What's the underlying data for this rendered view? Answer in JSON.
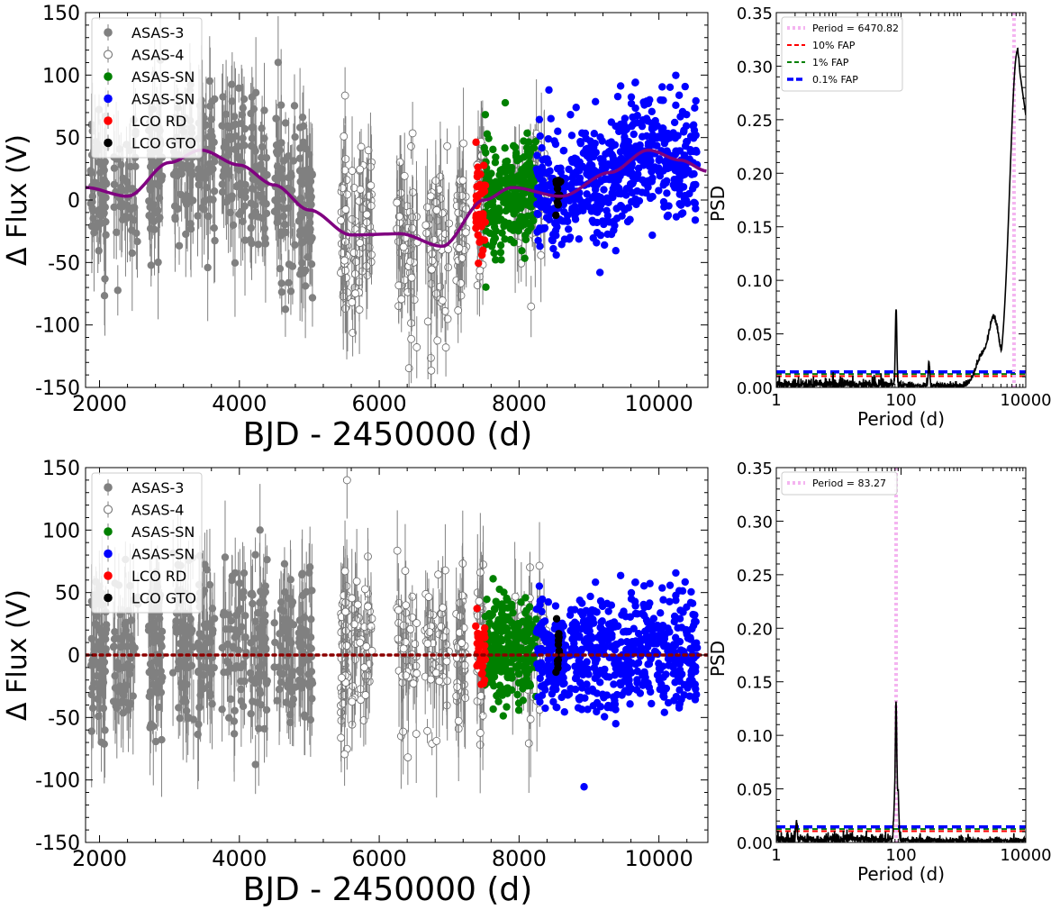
{
  "chart_data": [
    {
      "type": "scatter",
      "panel": "top-left",
      "xlabel": "BJD - 2450000 (d)",
      "ylabel": "Δ Flux (V)",
      "xlim": [
        1800,
        10700
      ],
      "ylim": [
        -150,
        150
      ],
      "xticks": [
        2000,
        4000,
        6000,
        8000,
        10000
      ],
      "yticks": [
        -150,
        -100,
        -50,
        0,
        50,
        100,
        150
      ],
      "legend_position": "top-left",
      "series": [
        {
          "name": "ASAS-3",
          "color": "#808080",
          "marker": "filled-circle",
          "x_range": [
            1870,
            5050
          ],
          "y_center": 15,
          "y_spread": 45
        },
        {
          "name": "ASAS-4",
          "color": "#ffffff",
          "marker": "open-circle",
          "x_range": [
            5400,
            8400
          ],
          "y_center": -20,
          "y_spread": 45
        },
        {
          "name": "ASAS-SN",
          "color": "#008000",
          "marker": "filled-circle",
          "x_range": [
            7500,
            8250
          ],
          "y_center": 10,
          "y_spread": 30
        },
        {
          "name": "ASAS-SN",
          "color": "#0000ff",
          "marker": "filled-circle",
          "x_range": [
            8250,
            10550
          ],
          "y_center": 20,
          "y_spread": 35
        },
        {
          "name": "LCO RD",
          "color": "#ff0000",
          "marker": "filled-circle",
          "x_range": [
            7380,
            7520
          ],
          "y_center": -15,
          "y_spread": 25
        },
        {
          "name": "LCO GTO",
          "color": "#000000",
          "marker": "filled-circle",
          "x_range": [
            8520,
            8600
          ],
          "y_center": 5,
          "y_spread": 15
        }
      ],
      "model": {
        "color": "#800080",
        "x": [
          1800,
          2400,
          3000,
          3450,
          4000,
          4500,
          5000,
          5600,
          6300,
          6900,
          7500,
          7900,
          8600,
          9300,
          9850,
          10300,
          10700
        ],
        "y": [
          10,
          3,
          30,
          40,
          28,
          12,
          -8,
          -28,
          -27,
          -37,
          0,
          10,
          3,
          22,
          40,
          32,
          23
        ]
      }
    },
    {
      "type": "line",
      "panel": "top-right",
      "xlabel": "Period (d)",
      "ylabel": "PSD",
      "xscale": "log",
      "xlim": [
        1,
        10000
      ],
      "ylim": [
        0,
        0.35
      ],
      "xticks": [
        1,
        100,
        10000
      ],
      "yticks": [
        0.0,
        0.05,
        0.1,
        0.15,
        0.2,
        0.25,
        0.3,
        0.35
      ],
      "peak_period": 6470.82,
      "peaks": [
        {
          "period": 83.27,
          "psd": 0.072
        },
        {
          "period": 280,
          "psd": 0.022
        },
        {
          "period": 1900,
          "psd": 0.025
        },
        {
          "period": 3100,
          "psd": 0.062
        },
        {
          "period": 7300,
          "psd": 0.313
        }
      ],
      "fap_levels": [
        {
          "name": "10% FAP",
          "value": 0.0105,
          "color": "#ff0000"
        },
        {
          "name": "1% FAP",
          "value": 0.0125,
          "color": "#008000"
        },
        {
          "name": "0.1% FAP",
          "value": 0.0145,
          "color": "#0000ff"
        }
      ],
      "legend": [
        {
          "label": "Period = 6470.82",
          "color": "#f4b4f0",
          "style": "dotted"
        },
        {
          "label": "10% FAP",
          "color": "#ff0000",
          "style": "dashed"
        },
        {
          "label": "1% FAP",
          "color": "#008000",
          "style": "dashed"
        },
        {
          "label": "0.1% FAP",
          "color": "#0000ff",
          "style": "dashed"
        }
      ],
      "legend_position": "top-left"
    },
    {
      "type": "scatter",
      "panel": "bottom-left",
      "xlabel": "BJD - 2450000 (d)",
      "ylabel": "Δ Flux (V)",
      "xlim": [
        1800,
        10700
      ],
      "ylim": [
        -150,
        150
      ],
      "xticks": [
        2000,
        4000,
        6000,
        8000,
        10000
      ],
      "yticks": [
        -150,
        -100,
        -50,
        0,
        50,
        100,
        150
      ],
      "legend_position": "top-left",
      "series": [
        {
          "name": "ASAS-3",
          "color": "#808080",
          "marker": "filled-circle",
          "x_range": [
            1870,
            5050
          ],
          "y_center": 5,
          "y_spread": 45
        },
        {
          "name": "ASAS-4",
          "color": "#ffffff",
          "marker": "open-circle",
          "x_range": [
            5400,
            8400
          ],
          "y_center": 5,
          "y_spread": 45
        },
        {
          "name": "ASAS-SN",
          "color": "#008000",
          "marker": "filled-circle",
          "x_range": [
            7500,
            8250
          ],
          "y_center": 5,
          "y_spread": 30
        },
        {
          "name": "ASAS-SN",
          "color": "#0000ff",
          "marker": "filled-circle",
          "x_range": [
            8250,
            10550
          ],
          "y_center": 2,
          "y_spread": 32
        },
        {
          "name": "LCO RD",
          "color": "#ff0000",
          "marker": "filled-circle",
          "x_range": [
            7380,
            7520
          ],
          "y_center": 5,
          "y_spread": 22
        },
        {
          "name": "LCO GTO",
          "color": "#000000",
          "marker": "filled-circle",
          "x_range": [
            8520,
            8600
          ],
          "y_center": 2,
          "y_spread": 15
        }
      ],
      "model": {
        "color": "#8b0000",
        "style": "dotted",
        "x": [
          1800,
          10700
        ],
        "y": [
          0,
          0
        ]
      }
    },
    {
      "type": "line",
      "panel": "bottom-right",
      "xlabel": "Period (d)",
      "ylabel": "PSD",
      "xscale": "log",
      "xlim": [
        1,
        10000
      ],
      "ylim": [
        0,
        0.35
      ],
      "xticks": [
        1,
        100,
        10000
      ],
      "yticks": [
        0.0,
        0.05,
        0.1,
        0.15,
        0.2,
        0.25,
        0.3,
        0.35
      ],
      "peak_period": 83.27,
      "peaks": [
        {
          "period": 83.27,
          "psd": 0.126
        },
        {
          "period": 78,
          "psd": 0.03
        },
        {
          "period": 90,
          "psd": 0.04
        },
        {
          "period": 2.1,
          "psd": 0.015
        }
      ],
      "fap_levels": [
        {
          "name": "10% FAP",
          "value": 0.0105,
          "color": "#ff0000"
        },
        {
          "name": "1% FAP",
          "value": 0.0125,
          "color": "#008000"
        },
        {
          "name": "0.1% FAP",
          "value": 0.0145,
          "color": "#0000ff"
        }
      ],
      "legend": [
        {
          "label": "Period = 83.27",
          "color": "#f4b4f0",
          "style": "dotted"
        }
      ],
      "legend_position": "top-left"
    }
  ]
}
